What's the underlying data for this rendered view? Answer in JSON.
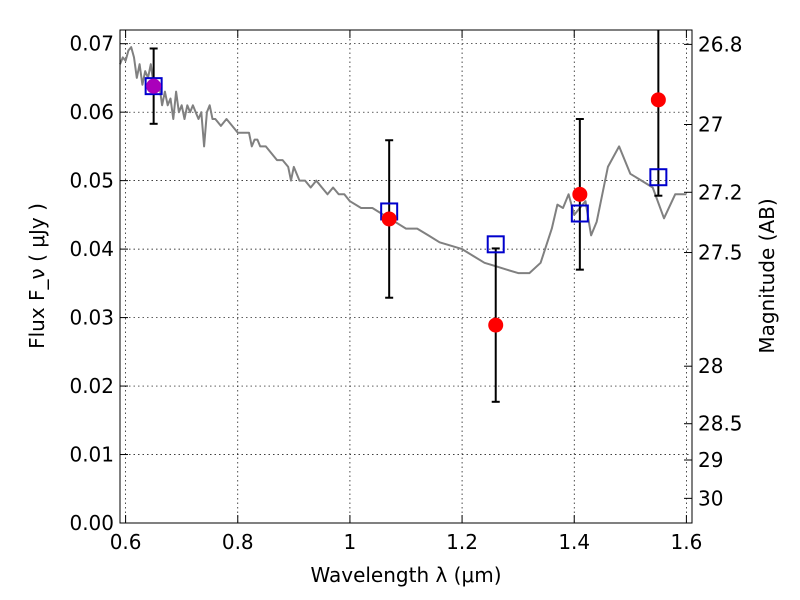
{
  "chart_data": {
    "type": "scatter",
    "xlabel": "Wavelength  λ (μm)",
    "ylabel": "Flux  F_ν  ( μJy )",
    "y2label": "Magnitude (AB)",
    "xlim": [
      0.59,
      1.61
    ],
    "ylim": [
      0.0,
      0.072
    ],
    "grid": true,
    "x_ticks": [
      {
        "value": 0.6,
        "label": "0.6"
      },
      {
        "value": 0.8,
        "label": "0.8"
      },
      {
        "value": 1.0,
        "label": "1"
      },
      {
        "value": 1.2,
        "label": "1.2"
      },
      {
        "value": 1.4,
        "label": "1.4"
      },
      {
        "value": 1.6,
        "label": "1.6"
      }
    ],
    "y_ticks": [
      {
        "value": 0.0,
        "label": "0.00"
      },
      {
        "value": 0.01,
        "label": "0.01"
      },
      {
        "value": 0.02,
        "label": "0.02"
      },
      {
        "value": 0.03,
        "label": "0.03"
      },
      {
        "value": 0.04,
        "label": "0.04"
      },
      {
        "value": 0.05,
        "label": "0.05"
      },
      {
        "value": 0.06,
        "label": "0.06"
      },
      {
        "value": 0.07,
        "label": "0.07"
      }
    ],
    "y2_ticks": [
      {
        "flux": 0.0699,
        "label": "26.8"
      },
      {
        "flux": 0.0582,
        "label": "27"
      },
      {
        "flux": 0.0483,
        "label": "27.2"
      },
      {
        "flux": 0.0395,
        "label": "27.5"
      },
      {
        "flux": 0.0229,
        "label": "28"
      },
      {
        "flux": 0.0145,
        "label": "28.5"
      },
      {
        "flux": 0.0092,
        "label": "29"
      },
      {
        "flux": 0.0036,
        "label": "30"
      }
    ],
    "series": [
      {
        "kind": "line",
        "color": "#808080",
        "x": [
          0.59,
          0.595,
          0.6,
          0.605,
          0.61,
          0.615,
          0.62,
          0.625,
          0.63,
          0.635,
          0.64,
          0.645,
          0.65,
          0.655,
          0.66,
          0.665,
          0.67,
          0.675,
          0.68,
          0.685,
          0.69,
          0.695,
          0.7,
          0.705,
          0.71,
          0.715,
          0.72,
          0.725,
          0.73,
          0.735,
          0.74,
          0.745,
          0.75,
          0.755,
          0.76,
          0.77,
          0.78,
          0.79,
          0.8,
          0.81,
          0.82,
          0.825,
          0.83,
          0.835,
          0.84,
          0.85,
          0.86,
          0.87,
          0.88,
          0.89,
          0.895,
          0.9,
          0.91,
          0.92,
          0.93,
          0.94,
          0.95,
          0.96,
          0.97,
          0.98,
          0.99,
          1.0,
          1.02,
          1.04,
          1.06,
          1.08,
          1.1,
          1.12,
          1.14,
          1.16,
          1.18,
          1.2,
          1.22,
          1.24,
          1.26,
          1.28,
          1.3,
          1.32,
          1.34,
          1.36,
          1.37,
          1.38,
          1.39,
          1.4,
          1.41,
          1.42,
          1.43,
          1.44,
          1.46,
          1.48,
          1.5,
          1.52,
          1.54,
          1.56,
          1.58,
          1.6
        ],
        "y": [
          0.067,
          0.068,
          0.0675,
          0.069,
          0.0695,
          0.068,
          0.065,
          0.067,
          0.064,
          0.066,
          0.065,
          0.067,
          0.064,
          0.063,
          0.064,
          0.061,
          0.063,
          0.061,
          0.062,
          0.059,
          0.063,
          0.06,
          0.061,
          0.059,
          0.061,
          0.06,
          0.061,
          0.06,
          0.059,
          0.06,
          0.055,
          0.06,
          0.061,
          0.059,
          0.059,
          0.058,
          0.059,
          0.058,
          0.057,
          0.057,
          0.057,
          0.055,
          0.056,
          0.056,
          0.055,
          0.055,
          0.054,
          0.053,
          0.053,
          0.052,
          0.05,
          0.052,
          0.05,
          0.05,
          0.049,
          0.05,
          0.049,
          0.048,
          0.049,
          0.048,
          0.048,
          0.047,
          0.046,
          0.046,
          0.045,
          0.044,
          0.043,
          0.043,
          0.042,
          0.041,
          0.0405,
          0.04,
          0.039,
          0.038,
          0.0375,
          0.037,
          0.0365,
          0.0365,
          0.038,
          0.043,
          0.0465,
          0.046,
          0.048,
          0.045,
          0.046,
          0.047,
          0.042,
          0.044,
          0.052,
          0.055,
          0.051,
          0.05,
          0.049,
          0.0445,
          0.048,
          0.048
        ]
      },
      {
        "kind": "markers",
        "marker": "circle",
        "color": "#ff0000",
        "x": [
          0.65,
          1.07,
          1.26,
          1.41,
          1.55
        ],
        "y": [
          0.0638,
          0.0444,
          0.0289,
          0.048,
          0.0618
        ],
        "yerr": [
          0.0055,
          0.0115,
          0.0112,
          0.011,
          0.014
        ]
      },
      {
        "kind": "markers",
        "marker": "square-open",
        "color": "#0000cc",
        "x": [
          0.65,
          1.07,
          1.26,
          1.41,
          1.55
        ],
        "y": [
          0.0638,
          0.0455,
          0.0407,
          0.0452,
          0.0505
        ]
      }
    ]
  }
}
